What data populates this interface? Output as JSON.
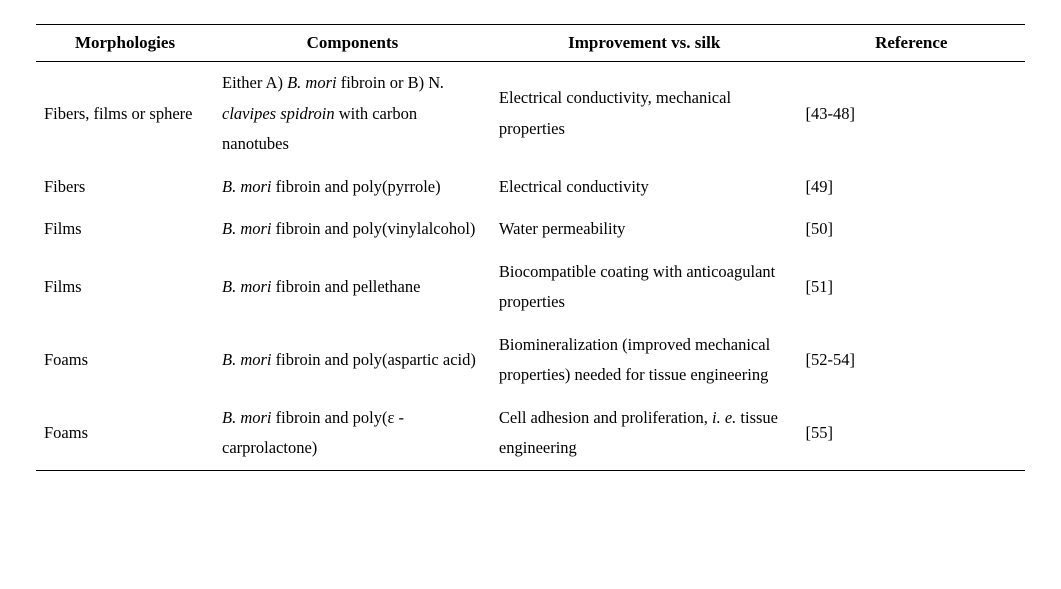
{
  "table": {
    "background_color": "#ffffff",
    "text_color": "#000000",
    "border_color": "#000000",
    "font_family": "Times New Roman",
    "header_fontsize": 17,
    "body_fontsize": 16.5,
    "line_height": 1.85,
    "column_widths_pct": [
      18,
      28,
      31,
      23
    ],
    "columns": [
      "Morphologies",
      "Components",
      "Improvement    vs. silk",
      "Reference"
    ],
    "rows": [
      {
        "morphology": "Fibers, films or sphere",
        "components_segments": [
          {
            "t": "Either A) "
          },
          {
            "t": "B. mori",
            "i": true
          },
          {
            "t": "    fibroin or B) N"
          },
          {
            "t": ". clavipes spidroin",
            "i": true
          },
          {
            "t": "  with carbon nanotubes"
          }
        ],
        "improvement": "Electrical conductivity, mechanical properties",
        "reference": "[43-48]"
      },
      {
        "morphology": "Fibers",
        "components_segments": [
          {
            "t": "B. mori",
            "i": true
          },
          {
            "t": " fibroin and poly(pyrrole)"
          }
        ],
        "improvement": "Electrical conductivity",
        "reference": "[49]"
      },
      {
        "morphology": "Films",
        "components_segments": [
          {
            "t": "B. mori",
            "i": true
          },
          {
            "t": " fibroin and poly(vinylalcohol)"
          }
        ],
        "improvement": "Water permeability",
        "reference": "[50]"
      },
      {
        "morphology": "Films",
        "components_segments": [
          {
            "t": "B. mori",
            "i": true
          },
          {
            "t": " fibroin and pellethane"
          }
        ],
        "improvement": "Biocompatible coating with anticoagulant properties",
        "reference": "[51]"
      },
      {
        "morphology": "Foams",
        "components_segments": [
          {
            "t": "B. mori",
            "i": true
          },
          {
            "t": " fibroin and poly(aspartic acid)"
          }
        ],
        "improvement": "Biomineralization (improved mechanical properties) needed for tissue engineering",
        "reference": "[52-54]"
      },
      {
        "morphology": "Foams",
        "components_segments": [
          {
            "t": "B. mori",
            "i": true
          },
          {
            "t": " fibroin and poly(ε -carprolactone)"
          }
        ],
        "improvement_segments": [
          {
            "t": "Cell adhesion and proliferation, "
          },
          {
            "t": "i. e.",
            "i": true
          },
          {
            "t": " tissue engineering"
          }
        ],
        "reference": "[55]"
      }
    ]
  }
}
